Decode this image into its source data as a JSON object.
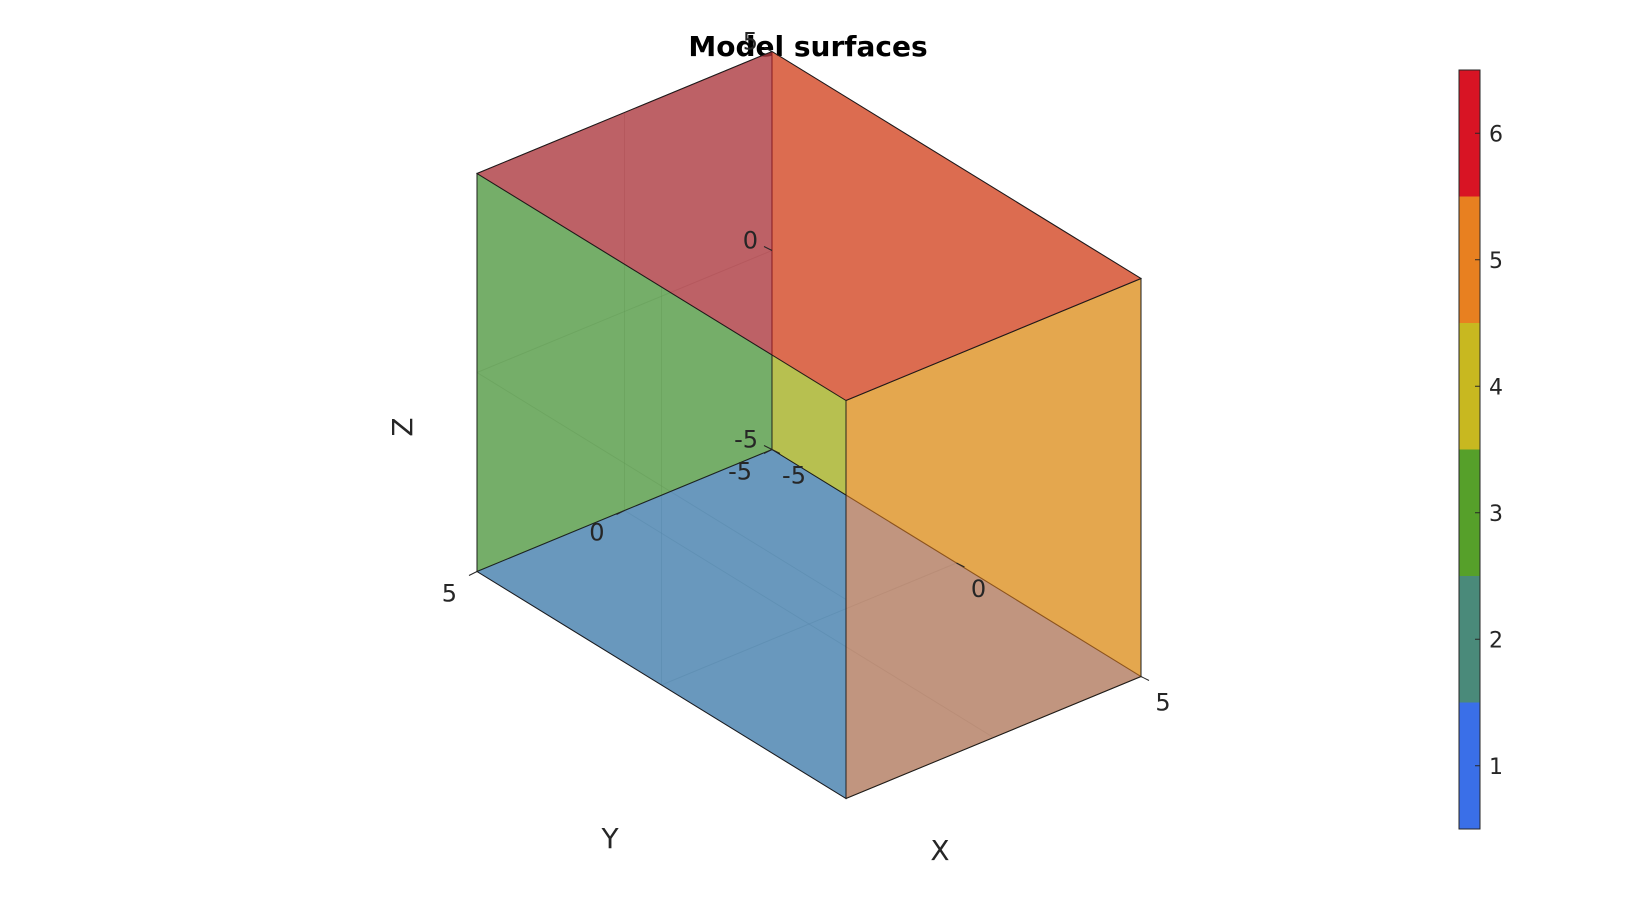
{
  "chart_data": {
    "type": "3d-surface",
    "title": "Model surfaces",
    "xlabel": "X",
    "ylabel": "Y",
    "zlabel": "Z",
    "xlim": [
      -5,
      5
    ],
    "ylim": [
      -5,
      5
    ],
    "zlim": [
      -5,
      5
    ],
    "xticks": [
      "-5",
      "0",
      "5"
    ],
    "yticks": [
      "-5",
      "0",
      "5"
    ],
    "zticks": [
      "-5",
      "0",
      "5"
    ],
    "grid": true,
    "surfaces": [
      {
        "id": 1,
        "face": "z=-5",
        "color": "#3a6fe8"
      },
      {
        "id": 2,
        "face": "x=-5",
        "color": "#4a8a7a"
      },
      {
        "id": 3,
        "face": "y=5",
        "color": "#56a02a"
      },
      {
        "id": 4,
        "face": "y=-5",
        "color": "#c8b820"
      },
      {
        "id": 5,
        "face": "x=5",
        "color": "#e88020"
      },
      {
        "id": 6,
        "face": "z=5",
        "color": "#d81424"
      }
    ],
    "colorbar": {
      "placement": "right",
      "range": [
        0.5,
        6.5
      ],
      "ticks": [
        "1",
        "2",
        "3",
        "4",
        "5",
        "6"
      ],
      "colors": [
        "#3a6fe8",
        "#4a8a7a",
        "#56a02a",
        "#c8b820",
        "#e88020",
        "#d81424"
      ]
    }
  }
}
